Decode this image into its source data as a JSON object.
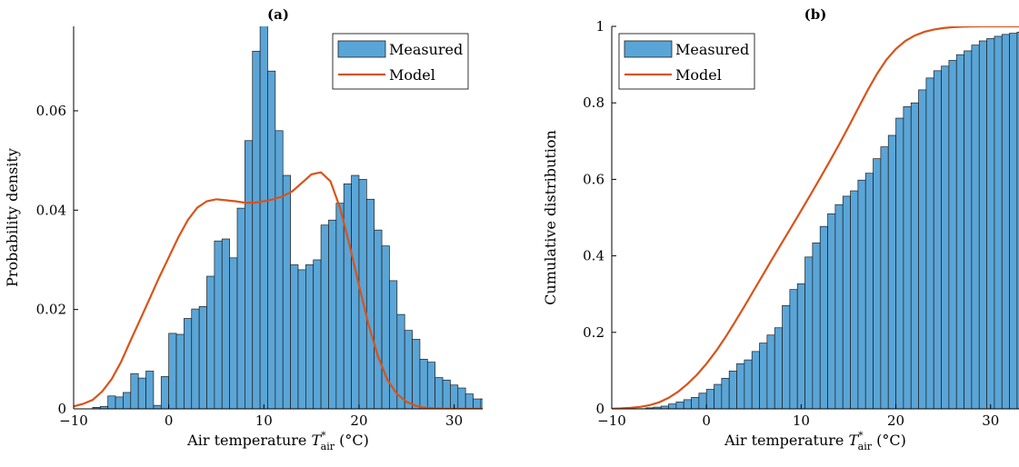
{
  "colors": {
    "bar": "#5aa5d7",
    "bar_edge": "#1e1e1e",
    "model": "#d95319"
  },
  "chart_data": [
    {
      "type": "bar",
      "title": "(a)",
      "xlabel": "Air temperature",
      "xlabel_sym": "T",
      "xlabel_sup": "*",
      "xlabel_sub": "air",
      "xlabel_unit": "(°C)",
      "ylabel": "Probability density",
      "xlim": [
        -10,
        33
      ],
      "ylim": [
        0,
        0.077
      ],
      "xticks": [
        -10,
        0,
        10,
        20,
        30
      ],
      "yticks": [
        0,
        0.02,
        0.04,
        0.06
      ],
      "ytick_labels": [
        "0",
        "0.02",
        "0.04",
        "0.06"
      ],
      "xtick_labels": [
        "−10",
        "0",
        "10",
        "20",
        "30"
      ],
      "legend": [
        "Measured",
        "Model"
      ],
      "legend_position": "top-right",
      "bins_start": -8,
      "bin_width": 0.8,
      "values": [
        0.0003,
        0.0005,
        0.0026,
        0.0024,
        0.0033,
        0.0071,
        0.0062,
        0.0076,
        0.0007,
        0.0065,
        0.0152,
        0.015,
        0.0182,
        0.0201,
        0.0206,
        0.0267,
        0.0338,
        0.0342,
        0.0304,
        0.0404,
        0.054,
        0.072,
        0.081,
        0.068,
        0.056,
        0.047,
        0.029,
        0.028,
        0.029,
        0.03,
        0.037,
        0.038,
        0.0414,
        0.0453,
        0.047,
        0.0462,
        0.0422,
        0.036,
        0.0328,
        0.0258,
        0.019,
        0.0158,
        0.014,
        0.01,
        0.0094,
        0.0063,
        0.0058,
        0.0048,
        0.0042,
        0.003,
        0.002,
        0.002,
        0.0007,
        0.0005,
        0.0003
      ],
      "series": [
        {
          "name": "Model",
          "x": [
            -10,
            -9,
            -8,
            -7,
            -6,
            -5,
            -4,
            -3,
            -2,
            -1,
            0,
            1,
            2,
            3,
            4,
            5,
            6,
            7,
            8,
            9,
            10,
            11,
            12,
            13,
            14,
            15,
            16,
            17,
            18,
            19,
            20,
            21,
            22,
            23,
            24,
            25,
            26,
            27,
            28,
            29,
            30,
            31,
            32,
            33
          ],
          "y": [
            0.0005,
            0.001,
            0.0018,
            0.0035,
            0.006,
            0.0095,
            0.0138,
            0.018,
            0.0222,
            0.0265,
            0.0305,
            0.0345,
            0.038,
            0.0405,
            0.0418,
            0.0422,
            0.042,
            0.0418,
            0.0415,
            0.0415,
            0.0418,
            0.0422,
            0.0428,
            0.0438,
            0.0455,
            0.0472,
            0.0476,
            0.0458,
            0.0405,
            0.033,
            0.0248,
            0.017,
            0.0105,
            0.0058,
            0.003,
            0.0014,
            0.0006,
            0.0002,
            0.0001,
            0,
            0,
            0,
            0,
            0
          ]
        }
      ]
    },
    {
      "type": "bar",
      "title": "(b)",
      "xlabel": "Air temperature",
      "xlabel_sym": "T",
      "xlabel_sup": "*",
      "xlabel_sub": "air",
      "xlabel_unit": "(°C)",
      "ylabel": "Cumulative distribution",
      "xlim": [
        -10,
        33
      ],
      "ylim": [
        0,
        1
      ],
      "xticks": [
        -10,
        0,
        10,
        20,
        30
      ],
      "yticks": [
        0,
        0.2,
        0.4,
        0.6,
        0.8,
        1
      ],
      "ytick_labels": [
        "0",
        "0.2",
        "0.4",
        "0.6",
        "0.8",
        "1"
      ],
      "xtick_labels": [
        "−10",
        "0",
        "10",
        "20",
        "30"
      ],
      "legend": [
        "Measured",
        "Model"
      ],
      "legend_position": "top-left",
      "bins_start": -8,
      "bin_width": 0.8,
      "values": [
        0.0002,
        0.0006,
        0.0027,
        0.0045,
        0.0072,
        0.0127,
        0.018,
        0.024,
        0.03,
        0.041,
        0.051,
        0.064,
        0.08,
        0.099,
        0.118,
        0.128,
        0.15,
        0.172,
        0.193,
        0.212,
        0.27,
        0.312,
        0.327,
        0.397,
        0.434,
        0.477,
        0.51,
        0.534,
        0.556,
        0.57,
        0.598,
        0.616,
        0.654,
        0.685,
        0.715,
        0.76,
        0.79,
        0.8,
        0.834,
        0.865,
        0.884,
        0.896,
        0.911,
        0.926,
        0.936,
        0.951,
        0.962,
        0.968,
        0.974,
        0.979,
        0.982,
        0.985,
        0.987,
        0.989,
        0.991,
        0.994,
        0.996,
        0.997,
        0.998,
        0.999,
        1.0
      ],
      "series": [
        {
          "name": "Model",
          "x": [
            -10,
            -9,
            -8,
            -7,
            -6,
            -5,
            -4,
            -3,
            -2,
            -1,
            0,
            1,
            2,
            3,
            4,
            5,
            6,
            7,
            8,
            9,
            10,
            11,
            12,
            13,
            14,
            15,
            16,
            17,
            18,
            19,
            20,
            21,
            22,
            23,
            24,
            25,
            26,
            27,
            28,
            29,
            30,
            31,
            32,
            33
          ],
          "y": [
            0.0005,
            0.0012,
            0.0026,
            0.0052,
            0.0098,
            0.0172,
            0.0287,
            0.0447,
            0.065,
            0.0892,
            0.118,
            0.1505,
            0.187,
            0.2265,
            0.268,
            0.31,
            0.352,
            0.394,
            0.4355,
            0.477,
            0.5185,
            0.5605,
            0.603,
            0.6465,
            0.691,
            0.7375,
            0.785,
            0.832,
            0.8755,
            0.9125,
            0.941,
            0.962,
            0.976,
            0.9855,
            0.9915,
            0.9955,
            0.9978,
            0.999,
            0.9996,
            0.9999,
            1,
            1,
            1,
            1
          ]
        }
      ]
    }
  ]
}
